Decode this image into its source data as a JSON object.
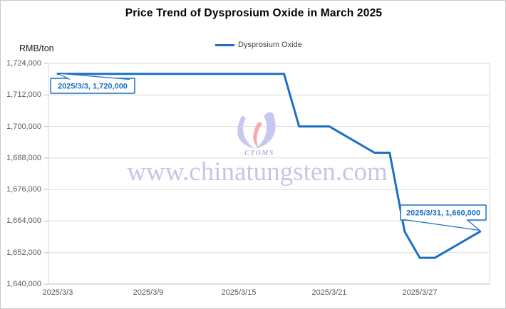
{
  "chart_data": {
    "type": "line",
    "title": "Price Trend of Dysprosium Oxide in March 2025",
    "ylabel": "RMB/ton",
    "xlabel": "",
    "grid": true,
    "legend_position": "top-center",
    "ylim": [
      1640000,
      1724000
    ],
    "y_tick_step": 12000,
    "y_ticks": [
      "1,724,000",
      "1,712,000",
      "1,700,000",
      "1,688,000",
      "1,676,000",
      "1,664,000",
      "1,652,000",
      "1,640,000"
    ],
    "x_ticks": [
      "2025/3/3",
      "2025/3/9",
      "2025/3/15",
      "2025/3/21",
      "2025/3/27"
    ],
    "series": [
      {
        "name": "Dysprosium Oxide",
        "points": [
          {
            "date": "2025/3/3",
            "value": 1720000
          },
          {
            "date": "2025/3/18",
            "value": 1720000
          },
          {
            "date": "2025/3/19",
            "value": 1700000
          },
          {
            "date": "2025/3/20",
            "value": 1700000
          },
          {
            "date": "2025/3/21",
            "value": 1700000
          },
          {
            "date": "2025/3/24",
            "value": 1690000
          },
          {
            "date": "2025/3/25",
            "value": 1690000
          },
          {
            "date": "2025/3/26",
            "value": 1660000
          },
          {
            "date": "2025/3/27",
            "value": 1650000
          },
          {
            "date": "2025/3/28",
            "value": 1650000
          },
          {
            "date": "2025/3/31",
            "value": 1660000
          }
        ]
      }
    ],
    "annotations": [
      {
        "text": "2025/3/3, 1,720,000",
        "date": "2025/3/3",
        "value": 1720000
      },
      {
        "text": "2025/3/31, 1,660,000",
        "date": "2025/3/31",
        "value": 1660000
      }
    ]
  },
  "watermark": {
    "logo_text": "CTOMS",
    "url_text": "www.chinatungsten.com"
  },
  "colors": {
    "line": "#1b70c4",
    "gridline": "#d9d9d9",
    "axis": "#bfbfbf",
    "tick_text": "#595959",
    "title_text": "#000000",
    "watermark": "#a3a3dc",
    "logo_lavender": "#c7c7ef",
    "logo_pink": "#f2abaf"
  }
}
